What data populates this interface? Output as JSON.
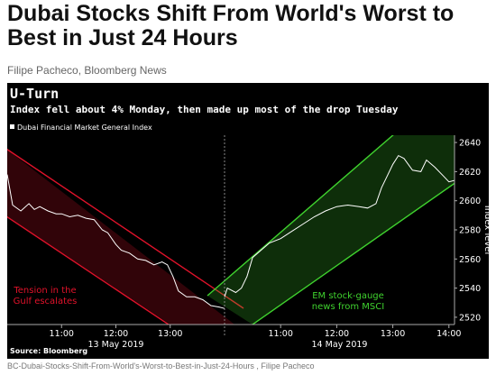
{
  "headline": "Dubai Stocks Shift From World's Worst to Best in Just 24 Hours",
  "byline": "Filipe Pacheco, Bloomberg News",
  "caption": "BC-Dubai-Stocks-Shift-From-World's-Worst-to-Best-in-Just-24-Hours , Filipe Pacheco",
  "colors": {
    "background": "#000000",
    "line": "#ffffff",
    "down_channel": "#e0122a",
    "up_channel": "#3fd22e"
  },
  "chart_data": {
    "type": "line",
    "title": "U-Turn",
    "subtitle": "Index fell about 4% Monday, then made up most of the drop Tuesday",
    "legend": "Dubai Financial Market General Index",
    "ylabel": "Index level",
    "source": "Source: Bloomberg",
    "ylim": [
      2515,
      2645
    ],
    "yticks": [
      "2520",
      "2540",
      "2560",
      "2580",
      "2600",
      "2620",
      "2640"
    ],
    "sessions": [
      {
        "date_label": "13 May 2019",
        "ticks": [
          "11:00",
          "12:00",
          "13:00"
        ]
      },
      {
        "date_label": "14 May 2019",
        "ticks": [
          "11:00",
          "12:00",
          "13:00",
          "14:00"
        ]
      }
    ],
    "annotations": [
      {
        "text": [
          "Tension in the",
          "Gulf escalates"
        ],
        "color": "#e0122a"
      },
      {
        "text": [
          "EM stock-gauge",
          "news from MSCI"
        ],
        "color": "#3fd22e"
      }
    ],
    "series": [
      {
        "values": [
          [
            10.0,
            2618
          ],
          [
            10.1,
            2597
          ],
          [
            10.25,
            2593
          ],
          [
            10.4,
            2598
          ],
          [
            10.5,
            2594
          ],
          [
            10.6,
            2596
          ],
          [
            10.75,
            2593
          ],
          [
            10.9,
            2591
          ],
          [
            11.0,
            2591
          ],
          [
            11.15,
            2589
          ],
          [
            11.3,
            2590
          ],
          [
            11.45,
            2588
          ],
          [
            11.6,
            2587
          ],
          [
            11.75,
            2580
          ],
          [
            11.85,
            2578
          ],
          [
            12.0,
            2570
          ],
          [
            12.1,
            2566
          ],
          [
            12.25,
            2564
          ],
          [
            12.4,
            2560
          ],
          [
            12.55,
            2559
          ],
          [
            12.7,
            2556
          ],
          [
            12.85,
            2558
          ],
          [
            12.95,
            2556
          ],
          [
            13.05,
            2548
          ],
          [
            13.15,
            2538
          ],
          [
            13.3,
            2534
          ],
          [
            13.45,
            2534
          ],
          [
            13.6,
            2532
          ],
          [
            13.75,
            2528
          ],
          [
            13.9,
            2527
          ],
          [
            14.0,
            2526
          ]
        ]
      },
      {
        "values": [
          [
            10.0,
            2534
          ],
          [
            10.05,
            2540
          ],
          [
            10.2,
            2537
          ],
          [
            10.3,
            2540
          ],
          [
            10.4,
            2548
          ],
          [
            10.5,
            2561
          ],
          [
            10.65,
            2566
          ],
          [
            10.8,
            2571
          ],
          [
            11.0,
            2574
          ],
          [
            11.2,
            2579
          ],
          [
            11.4,
            2584
          ],
          [
            11.6,
            2589
          ],
          [
            11.8,
            2593
          ],
          [
            12.0,
            2596
          ],
          [
            12.2,
            2597
          ],
          [
            12.4,
            2596
          ],
          [
            12.55,
            2595
          ],
          [
            12.7,
            2598
          ],
          [
            12.8,
            2609
          ],
          [
            12.9,
            2617
          ],
          [
            13.0,
            2625
          ],
          [
            13.1,
            2631
          ],
          [
            13.2,
            2629
          ],
          [
            13.35,
            2621
          ],
          [
            13.5,
            2620
          ],
          [
            13.6,
            2628
          ],
          [
            13.75,
            2623
          ],
          [
            13.9,
            2617
          ],
          [
            14.0,
            2613
          ],
          [
            14.1,
            2614
          ]
        ]
      }
    ]
  }
}
